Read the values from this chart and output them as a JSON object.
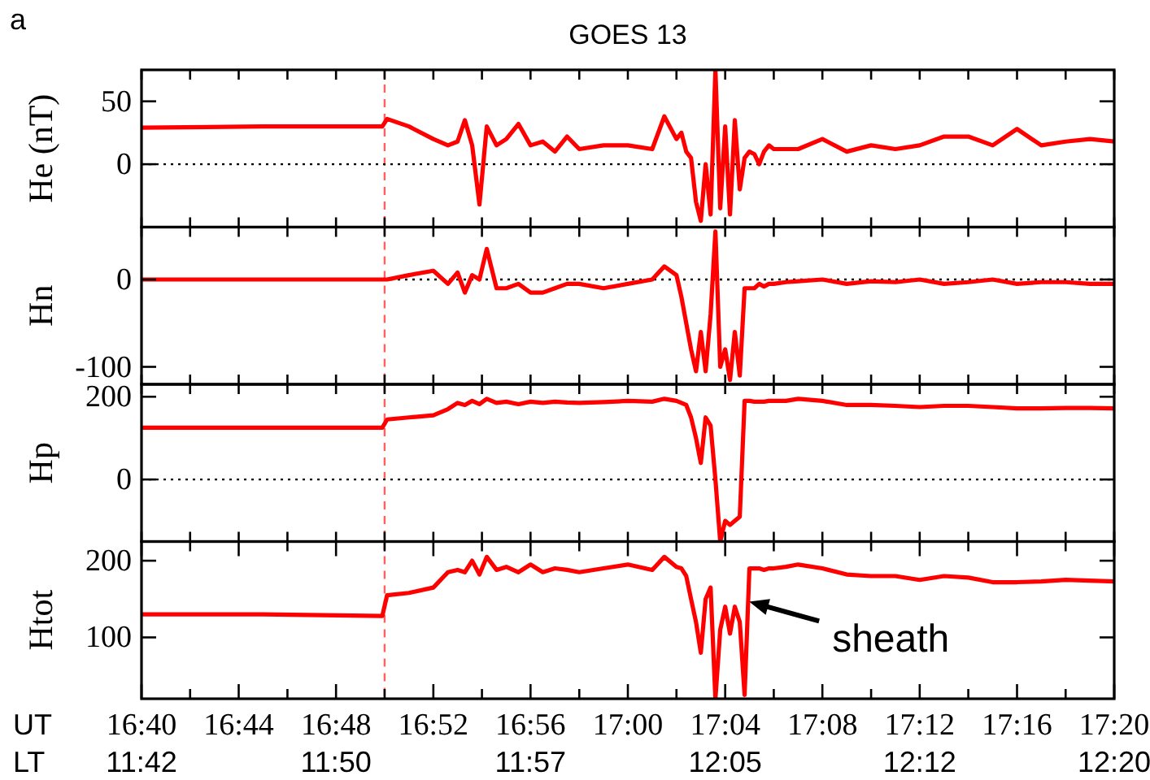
{
  "chart_data": [
    {
      "type": "line",
      "title": "GOES 13",
      "ylabel": "He (nT)",
      "annotations": [
        "a"
      ],
      "tick_labels": "y",
      "xlim": [
        16.6667,
        17.3333
      ],
      "xticks": [
        {
          "value": 16.6667,
          "label": null
        },
        {
          "value": 16.7,
          "label": null
        },
        {
          "value": 16.7333,
          "label": null
        },
        {
          "value": 16.7667,
          "label": null
        },
        {
          "value": 16.8,
          "label": null
        },
        {
          "value": 16.8333,
          "label": null
        },
        {
          "value": 16.8667,
          "label": null
        },
        {
          "value": 16.9,
          "label": null
        },
        {
          "value": 16.9333,
          "label": null
        },
        {
          "value": 16.9667,
          "label": null
        },
        {
          "value": 17,
          "label": null
        },
        {
          "value": 17.0333,
          "label": null
        },
        {
          "value": 17.0667,
          "label": null
        },
        {
          "value": 17.1,
          "label": null
        },
        {
          "value": 17.1333,
          "label": null
        },
        {
          "value": 17.1667,
          "label": null
        },
        {
          "value": 17.2,
          "label": null
        },
        {
          "value": 17.2333,
          "label": null
        },
        {
          "value": 17.2667,
          "label": null
        },
        {
          "value": 17.3,
          "label": null
        },
        {
          "value": 17.3333,
          "label": null
        }
      ],
      "ylim": [
        -50,
        75
      ],
      "yticks": [
        0,
        50
      ],
      "ref_lines": [
        {
          "axis": "x",
          "value": 16.8333,
          "color": "#ff6060",
          "line_style": "dashed"
        },
        {
          "axis": "y",
          "value": 0,
          "color": "#000000",
          "line_style": "dotted"
        }
      ],
      "x": [
        16.6667,
        16.75,
        16.8317,
        16.835,
        16.85,
        16.8667,
        16.8767,
        16.8833,
        16.8883,
        16.8933,
        16.8983,
        16.9033,
        16.91,
        16.9167,
        16.925,
        16.9333,
        16.9417,
        16.95,
        16.9583,
        16.9667,
        16.9833,
        17.0,
        17.0167,
        17.025,
        17.0333,
        17.0367,
        17.04,
        17.0433,
        17.0467,
        17.05,
        17.0533,
        17.0567,
        17.06,
        17.0633,
        17.0667,
        17.07,
        17.0733,
        17.0767,
        17.08,
        17.0833,
        17.0867,
        17.09,
        17.0933,
        17.0967,
        17.1,
        17.1083,
        17.1167,
        17.1333,
        17.15,
        17.1667,
        17.1833,
        17.2,
        17.2167,
        17.2333,
        17.25,
        17.2667,
        17.2833,
        17.3,
        17.3167,
        17.3333
      ],
      "series": [
        {
          "color": "#ff0000",
          "values": [
            29,
            30,
            30,
            36,
            30,
            20,
            15,
            18,
            35,
            15,
            -32,
            30,
            15,
            20,
            32,
            15,
            18,
            10,
            22,
            12,
            15,
            15,
            12,
            38,
            20,
            25,
            10,
            5,
            -30,
            -45,
            0,
            -40,
            75,
            -35,
            30,
            -40,
            35,
            -20,
            5,
            10,
            8,
            0,
            10,
            15,
            12,
            12,
            12,
            20,
            10,
            15,
            12,
            15,
            22,
            22,
            15,
            28,
            15,
            18,
            20,
            18
          ]
        }
      ]
    },
    {
      "type": "line",
      "ylabel": "Hn",
      "tick_labels": "y",
      "xlim": [
        16.6667,
        17.3333
      ],
      "xticks": [
        {
          "value": 16.6667,
          "label": null
        },
        {
          "value": 16.7,
          "label": null
        },
        {
          "value": 16.7333,
          "label": null
        },
        {
          "value": 16.7667,
          "label": null
        },
        {
          "value": 16.8,
          "label": null
        },
        {
          "value": 16.8333,
          "label": null
        },
        {
          "value": 16.8667,
          "label": null
        },
        {
          "value": 16.9,
          "label": null
        },
        {
          "value": 16.9333,
          "label": null
        },
        {
          "value": 16.9667,
          "label": null
        },
        {
          "value": 17,
          "label": null
        },
        {
          "value": 17.0333,
          "label": null
        },
        {
          "value": 17.0667,
          "label": null
        },
        {
          "value": 17.1,
          "label": null
        },
        {
          "value": 17.1333,
          "label": null
        },
        {
          "value": 17.1667,
          "label": null
        },
        {
          "value": 17.2,
          "label": null
        },
        {
          "value": 17.2333,
          "label": null
        },
        {
          "value": 17.2667,
          "label": null
        },
        {
          "value": 17.3,
          "label": null
        },
        {
          "value": 17.3333,
          "label": null
        }
      ],
      "ylim": [
        -120,
        60
      ],
      "yticks": [
        -100,
        0
      ],
      "ref_lines": [
        {
          "axis": "x",
          "value": 16.8333,
          "color": "#ff6060",
          "line_style": "dashed"
        },
        {
          "axis": "y",
          "value": 0,
          "color": "#000000",
          "line_style": "dotted"
        }
      ],
      "x": [
        16.6667,
        16.75,
        16.8317,
        16.835,
        16.85,
        16.8667,
        16.8767,
        16.8833,
        16.8883,
        16.8933,
        16.8983,
        16.9033,
        16.91,
        16.9167,
        16.925,
        16.9333,
        16.9417,
        16.95,
        16.9583,
        16.9667,
        16.9833,
        17.0,
        17.0167,
        17.025,
        17.0333,
        17.0367,
        17.04,
        17.0433,
        17.0467,
        17.05,
        17.0533,
        17.0567,
        17.06,
        17.0633,
        17.0667,
        17.07,
        17.0733,
        17.0767,
        17.08,
        17.0833,
        17.0867,
        17.09,
        17.0933,
        17.0967,
        17.1,
        17.1083,
        17.1167,
        17.1333,
        17.15,
        17.1667,
        17.1833,
        17.2,
        17.2167,
        17.2333,
        17.25,
        17.2667,
        17.2833,
        17.3,
        17.3167,
        17.3333
      ],
      "series": [
        {
          "color": "#ff0000",
          "values": [
            0,
            0,
            0,
            0,
            5,
            10,
            -5,
            8,
            -15,
            5,
            0,
            35,
            -10,
            -10,
            -5,
            -15,
            -15,
            -10,
            -5,
            -5,
            -10,
            -5,
            0,
            15,
            5,
            -20,
            -50,
            -80,
            -105,
            -60,
            -105,
            -40,
            55,
            -100,
            -80,
            -115,
            -60,
            -110,
            -10,
            -10,
            -10,
            -5,
            -8,
            -5,
            -5,
            -3,
            -2,
            0,
            -5,
            -2,
            -3,
            0,
            -5,
            -3,
            0,
            -5,
            -3,
            -3,
            -5,
            -5
          ]
        }
      ]
    },
    {
      "type": "line",
      "ylabel": "Hp",
      "tick_labels": "y",
      "xlim": [
        16.6667,
        17.3333
      ],
      "xticks": [
        {
          "value": 16.6667,
          "label": null
        },
        {
          "value": 16.7,
          "label": null
        },
        {
          "value": 16.7333,
          "label": null
        },
        {
          "value": 16.7667,
          "label": null
        },
        {
          "value": 16.8,
          "label": null
        },
        {
          "value": 16.8333,
          "label": null
        },
        {
          "value": 16.8667,
          "label": null
        },
        {
          "value": 16.9,
          "label": null
        },
        {
          "value": 16.9333,
          "label": null
        },
        {
          "value": 16.9667,
          "label": null
        },
        {
          "value": 17,
          "label": null
        },
        {
          "value": 17.0333,
          "label": null
        },
        {
          "value": 17.0667,
          "label": null
        },
        {
          "value": 17.1,
          "label": null
        },
        {
          "value": 17.1333,
          "label": null
        },
        {
          "value": 17.1667,
          "label": null
        },
        {
          "value": 17.2,
          "label": null
        },
        {
          "value": 17.2333,
          "label": null
        },
        {
          "value": 17.2667,
          "label": null
        },
        {
          "value": 17.3,
          "label": null
        },
        {
          "value": 17.3333,
          "label": null
        }
      ],
      "ylim": [
        -150,
        230
      ],
      "yticks": [
        0,
        200
      ],
      "ref_lines": [
        {
          "axis": "x",
          "value": 16.8333,
          "color": "#ff6060",
          "line_style": "dashed"
        },
        {
          "axis": "y",
          "value": 0,
          "color": "#000000",
          "line_style": "dotted"
        }
      ],
      "x": [
        16.6667,
        16.75,
        16.8317,
        16.835,
        16.85,
        16.8667,
        16.8767,
        16.8833,
        16.8883,
        16.8933,
        16.8983,
        16.9033,
        16.91,
        16.9167,
        16.925,
        16.9333,
        16.9417,
        16.95,
        16.9583,
        16.9667,
        16.9833,
        17.0,
        17.0167,
        17.025,
        17.0333,
        17.0367,
        17.04,
        17.0433,
        17.0467,
        17.05,
        17.0533,
        17.0567,
        17.06,
        17.0633,
        17.0667,
        17.07,
        17.0733,
        17.0767,
        17.08,
        17.0833,
        17.0867,
        17.09,
        17.0933,
        17.0967,
        17.1,
        17.1083,
        17.1167,
        17.1333,
        17.15,
        17.1667,
        17.1833,
        17.2,
        17.2167,
        17.2333,
        17.25,
        17.2667,
        17.2833,
        17.3,
        17.3167,
        17.3333
      ],
      "series": [
        {
          "color": "#ff0000",
          "values": [
            125,
            125,
            125,
            145,
            150,
            155,
            170,
            185,
            180,
            190,
            182,
            195,
            185,
            188,
            182,
            188,
            185,
            188,
            186,
            185,
            187,
            190,
            188,
            195,
            190,
            185,
            180,
            150,
            100,
            40,
            150,
            130,
            0,
            -150,
            -100,
            -110,
            -100,
            -90,
            190,
            190,
            188,
            188,
            188,
            190,
            190,
            190,
            195,
            190,
            180,
            180,
            178,
            175,
            178,
            178,
            175,
            172,
            172,
            173,
            173,
            172
          ]
        }
      ]
    },
    {
      "type": "line",
      "ylabel": "Htot",
      "annotations": [
        "UT",
        "LT",
        {
          "text": "sheath"
        }
      ],
      "xlim": [
        16.6667,
        17.3333
      ],
      "xticks": [
        {
          "value": 16.6667,
          "label": "16:40\n11:42"
        },
        {
          "value": 16.7,
          "label": null
        },
        {
          "value": 16.7333,
          "label": "16:44"
        },
        {
          "value": 16.7667,
          "label": null
        },
        {
          "value": 16.8,
          "label": "16:48\n11:50"
        },
        {
          "value": 16.8333,
          "label": null
        },
        {
          "value": 16.8667,
          "label": "16:52"
        },
        {
          "value": 16.9,
          "label": null
        },
        {
          "value": 16.9333,
          "label": "16:56\n11:57"
        },
        {
          "value": 16.9667,
          "label": null
        },
        {
          "value": 17,
          "label": "17:00"
        },
        {
          "value": 17.0333,
          "label": null
        },
        {
          "value": 17.0667,
          "label": "17:04\n12:05"
        },
        {
          "value": 17.1,
          "label": null
        },
        {
          "value": 17.1333,
          "label": "17:08"
        },
        {
          "value": 17.1667,
          "label": null
        },
        {
          "value": 17.2,
          "label": "17:12\n12:12"
        },
        {
          "value": 17.2333,
          "label": null
        },
        {
          "value": 17.2667,
          "label": "17:16"
        },
        {
          "value": 17.3,
          "label": null
        },
        {
          "value": 17.3333,
          "label": "17:20\n12:20"
        }
      ],
      "ylim": [
        20,
        225
      ],
      "yticks": [
        100,
        200
      ],
      "ref_lines": [
        {
          "axis": "x",
          "value": 16.8333,
          "color": "#ff6060",
          "line_style": "dashed"
        }
      ],
      "x": [
        16.6667,
        16.75,
        16.8317,
        16.835,
        16.85,
        16.8667,
        16.8767,
        16.8833,
        16.8883,
        16.8933,
        16.8983,
        16.9033,
        16.91,
        16.9167,
        16.925,
        16.9333,
        16.9417,
        16.95,
        16.9583,
        16.9667,
        16.9833,
        17.0,
        17.0167,
        17.025,
        17.0333,
        17.0367,
        17.04,
        17.0433,
        17.0467,
        17.05,
        17.0533,
        17.0567,
        17.06,
        17.0633,
        17.0667,
        17.07,
        17.0733,
        17.0767,
        17.08,
        17.0833,
        17.0867,
        17.09,
        17.0933,
        17.0967,
        17.1,
        17.1083,
        17.1167,
        17.1333,
        17.15,
        17.1667,
        17.1833,
        17.2,
        17.2167,
        17.2333,
        17.25,
        17.2667,
        17.2833,
        17.3,
        17.3167,
        17.3333
      ],
      "series": [
        {
          "color": "#ff0000",
          "values": [
            130,
            130,
            128,
            155,
            158,
            165,
            185,
            188,
            185,
            200,
            182,
            205,
            188,
            192,
            185,
            195,
            185,
            190,
            188,
            185,
            190,
            195,
            188,
            205,
            192,
            190,
            180,
            150,
            120,
            80,
            150,
            165,
            20,
            110,
            140,
            105,
            140,
            120,
            25,
            190,
            190,
            190,
            188,
            190,
            190,
            192,
            195,
            190,
            182,
            180,
            180,
            175,
            180,
            178,
            172,
            172,
            173,
            175,
            174,
            173
          ]
        }
      ]
    }
  ]
}
